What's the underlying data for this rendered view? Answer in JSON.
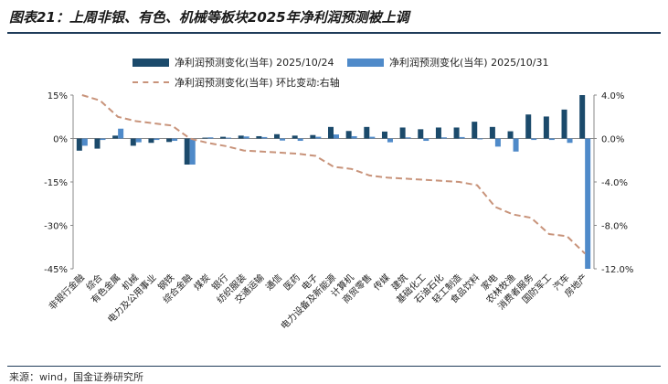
{
  "title": "图表21：上周非银、有色、机械等板块2025年净利润预测被上调",
  "source": "来源：wind，国金证券研究所",
  "colors": {
    "s1": "#1b4a6b",
    "s2": "#4f8ac9",
    "line": "#c8937a",
    "axis": "#888888"
  },
  "chart_data": {
    "type": "bar",
    "title": "图表21：上周非银、有色、机械等板块2025年净利润预测被上调",
    "categories": [
      "非银行金融",
      "综合",
      "有色金属",
      "机械",
      "电力及公用事业",
      "钢铁",
      "综合金融",
      "煤炭",
      "银行",
      "纺织服装",
      "交通运输",
      "通信",
      "医药",
      "电子",
      "电力设备及新能源",
      "计算机",
      "商贸零售",
      "传媒",
      "建筑",
      "基础化工",
      "石油石化",
      "轻工制造",
      "食品饮料",
      "家电",
      "农林牧渔",
      "消费者服务",
      "国防军工",
      "汽车",
      "房地产"
    ],
    "series": [
      {
        "name": "净利润预测变化(当年) 2025/10/24",
        "axis": "left",
        "values": [
          -4.2,
          -3.5,
          1.0,
          -2.5,
          -1.5,
          -1.2,
          -9.0,
          0.3,
          0.6,
          1.0,
          0.8,
          1.5,
          1.0,
          1.2,
          4.0,
          2.6,
          4.0,
          2.4,
          3.8,
          3.2,
          3.8,
          3.8,
          5.8,
          4.0,
          2.5,
          8.3,
          7.6,
          10.0,
          15.0
        ]
      },
      {
        "name": "净利润预测变化(当年) 2025/10/31",
        "axis": "left",
        "values": [
          -2.5,
          -0.5,
          3.4,
          -1.3,
          -0.5,
          -0.8,
          -9.0,
          0.4,
          0.3,
          0.7,
          0.5,
          -0.7,
          -0.8,
          0.6,
          1.4,
          0.8,
          0.6,
          -1.3,
          0.4,
          -0.8,
          0.4,
          0.5,
          -0.3,
          -2.8,
          -4.5,
          -0.5,
          -0.5,
          -1.5,
          -45.0
        ]
      },
      {
        "name": "净利润预测变化(当年) 环比变动:右轴",
        "axis": "right",
        "type": "line",
        "values": [
          4.0,
          3.5,
          2.0,
          1.6,
          1.4,
          1.2,
          0.0,
          -0.4,
          -0.7,
          -1.1,
          -1.2,
          -1.3,
          -1.4,
          -1.6,
          -2.6,
          -2.8,
          -3.4,
          -3.6,
          -3.7,
          -3.8,
          -3.9,
          -4.0,
          -4.3,
          -6.3,
          -7.0,
          -7.3,
          -8.8,
          -9.0,
          -10.6
        ]
      }
    ],
    "ylim_left": [
      -45,
      15
    ],
    "yticks_left": [
      "15%",
      "0%",
      "-15%",
      "-30%",
      "-45%"
    ],
    "ylim_right": [
      -12,
      4
    ],
    "yticks_right": [
      "4.0%",
      "0.0%",
      "-4.0%",
      "-8.0%",
      "-12.0%"
    ],
    "legend": "top"
  }
}
